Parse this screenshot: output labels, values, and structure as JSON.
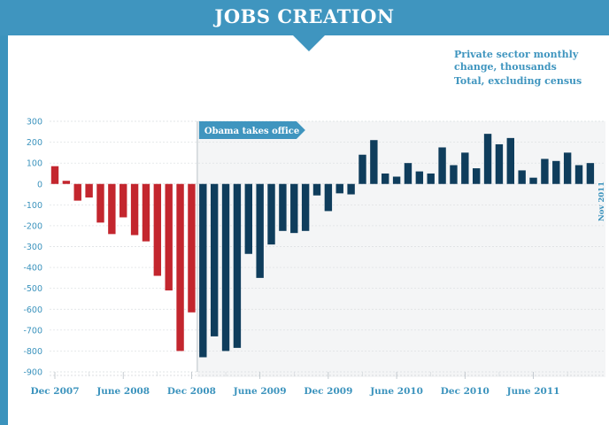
{
  "header": {
    "title": "JOBS CREATION"
  },
  "subtitle": {
    "line1": "Private sector monthly change, thousands",
    "line2": "Total, excluding census"
  },
  "colors": {
    "header": "#3f95bf",
    "before": "#c3262e",
    "after": "#0f3d5c",
    "axis_text": "#3b93bd"
  },
  "chart_data": {
    "type": "bar",
    "title": "",
    "xlabel": "",
    "ylabel": "",
    "ylim": [
      -900,
      300
    ],
    "yticks": [
      300,
      200,
      100,
      0,
      -100,
      -200,
      -300,
      -400,
      -500,
      -600,
      -700,
      -800,
      -900
    ],
    "x_tick_labels": [
      "Dec 2007",
      "June 2008",
      "Dec 2008",
      "June 2009",
      "Dec 2009",
      "June 2010",
      "Dec 2010",
      "June 2011"
    ],
    "grid": true,
    "annotation": "Obama takes office",
    "end_label": "Nov 2011",
    "categories": [
      "Dec 2007",
      "Jan 2008",
      "Feb 2008",
      "Mar 2008",
      "Apr 2008",
      "May 2008",
      "Jun 2008",
      "Jul 2008",
      "Aug 2008",
      "Sep 2008",
      "Oct 2008",
      "Nov 2008",
      "Dec 2008",
      "Jan 2009",
      "Feb 2009",
      "Mar 2009",
      "Apr 2009",
      "May 2009",
      "Jun 2009",
      "Jul 2009",
      "Aug 2009",
      "Sep 2009",
      "Oct 2009",
      "Nov 2009",
      "Dec 2009",
      "Jan 2010",
      "Feb 2010",
      "Mar 2010",
      "Apr 2010",
      "May 2010",
      "Jun 2010",
      "Jul 2010",
      "Aug 2010",
      "Sep 2010",
      "Oct 2010",
      "Nov 2010",
      "Dec 2010",
      "Jan 2011",
      "Feb 2011",
      "Mar 2011",
      "Apr 2011",
      "May 2011",
      "Jun 2011",
      "Jul 2011",
      "Aug 2011",
      "Sep 2011",
      "Oct 2011",
      "Nov 2011"
    ],
    "values": [
      85,
      15,
      -80,
      -65,
      -185,
      -240,
      -160,
      -245,
      -275,
      -440,
      -510,
      -800,
      -615,
      -830,
      -730,
      -800,
      -785,
      -335,
      -450,
      -290,
      -225,
      -235,
      -225,
      -55,
      -130,
      -45,
      -50,
      140,
      210,
      50,
      35,
      100,
      60,
      50,
      175,
      90,
      150,
      75,
      240,
      190,
      220,
      65,
      30,
      120,
      110,
      150,
      90,
      100
    ],
    "series_by_period": [
      {
        "name": "",
        "from": "Dec 2007",
        "to": "Dec 2008",
        "color": "#c3262e"
      },
      {
        "name": "",
        "from": "Jan 2009",
        "to": "Nov 2011",
        "color": "#0f3d5c"
      }
    ]
  }
}
